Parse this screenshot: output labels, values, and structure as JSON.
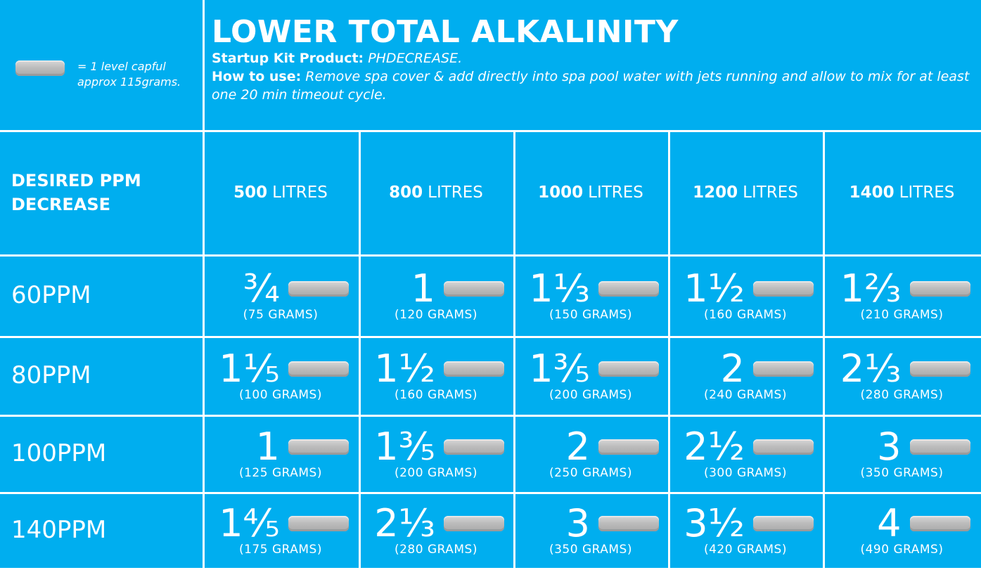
{
  "header": {
    "legend_text": "= 1 level capful approx 115grams.",
    "title": "LOWER TOTAL ALKALINITY",
    "product_label": "Startup Kit Product:",
    "product_value": "PHDECREASE.",
    "usage_label": "How to use:",
    "usage_value": "Remove spa cover & add directly into spa pool water with jets running and allow to mix for at least one 20 min timeout cycle."
  },
  "table": {
    "corner": "DESIRED PPM DECREASE",
    "columns": [
      {
        "volume": "500",
        "unit": "LITRES"
      },
      {
        "volume": "800",
        "unit": "LITRES"
      },
      {
        "volume": "1000",
        "unit": "LITRES"
      },
      {
        "volume": "1200",
        "unit": "LITRES"
      },
      {
        "volume": "1400",
        "unit": "LITRES"
      }
    ],
    "rows": [
      {
        "label": "60PPM",
        "cells": [
          {
            "amount": "¾",
            "grams": "(75 GRAMS)"
          },
          {
            "amount": "1",
            "grams": "(120 GRAMS)"
          },
          {
            "amount": "1⅓",
            "grams": "(150 GRAMS)"
          },
          {
            "amount": "1½",
            "grams": "(160 GRAMS)"
          },
          {
            "amount": "1⅔",
            "grams": "(210 GRAMS)"
          }
        ]
      },
      {
        "label": "80PPM",
        "cells": [
          {
            "amount": "1⅕",
            "grams": "(100 GRAMS)"
          },
          {
            "amount": "1½",
            "grams": "(160 GRAMS)"
          },
          {
            "amount": "1⅗",
            "grams": "(200 GRAMS)"
          },
          {
            "amount": "2",
            "grams": "(240 GRAMS)"
          },
          {
            "amount": "2⅓",
            "grams": "(280 GRAMS)"
          }
        ]
      },
      {
        "label": "100PPM",
        "cells": [
          {
            "amount": "1",
            "grams": "(125 GRAMS)"
          },
          {
            "amount": "1⅗",
            "grams": "(200 GRAMS)"
          },
          {
            "amount": "2",
            "grams": "(250 GRAMS)"
          },
          {
            "amount": "2½",
            "grams": "(300 GRAMS)"
          },
          {
            "amount": "3",
            "grams": "(350 GRAMS)"
          }
        ]
      },
      {
        "label": "140PPM",
        "cells": [
          {
            "amount": "1⅘",
            "grams": "(175 GRAMS)"
          },
          {
            "amount": "2⅓",
            "grams": "(280 GRAMS)"
          },
          {
            "amount": "3",
            "grams": "(350 GRAMS)"
          },
          {
            "amount": "3½",
            "grams": "(420 GRAMS)"
          },
          {
            "amount": "4",
            "grams": "(490 GRAMS)"
          }
        ]
      }
    ]
  }
}
